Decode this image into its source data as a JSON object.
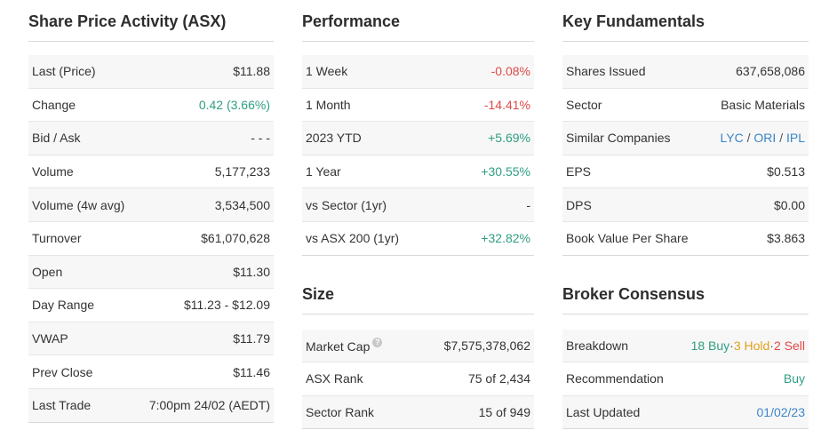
{
  "share_price": {
    "title": "Share Price Activity (ASX)",
    "rows": [
      {
        "label": "Last (Price)",
        "value": "$11.88"
      },
      {
        "label": "Change",
        "value": "0.42 (3.66%)"
      },
      {
        "label": "Bid / Ask",
        "value": "- - -"
      },
      {
        "label": "Volume",
        "value": "5,177,233"
      },
      {
        "label": "Volume (4w avg)",
        "value": "3,534,500"
      },
      {
        "label": "Turnover",
        "value": "$61,070,628"
      },
      {
        "label": "Open",
        "value": "$11.30"
      },
      {
        "label": "Day Range",
        "value": "$11.23 - $12.09"
      },
      {
        "label": "VWAP",
        "value": "$11.79"
      },
      {
        "label": "Prev Close",
        "value": "$11.46"
      },
      {
        "label": "Last Trade",
        "value": "7:00pm 24/02 (AEDT)"
      }
    ]
  },
  "performance": {
    "title": "Performance",
    "rows": [
      {
        "label": "1 Week",
        "value": "-0.08%"
      },
      {
        "label": "1 Month",
        "value": "-14.41%"
      },
      {
        "label": "2023 YTD",
        "value": "+5.69%"
      },
      {
        "label": "1 Year",
        "value": "+30.55%"
      },
      {
        "label": "vs Sector (1yr)",
        "value": "-"
      },
      {
        "label": "vs ASX 200 (1yr)",
        "value": "+32.82%"
      }
    ]
  },
  "size": {
    "title": "Size",
    "rows": [
      {
        "label": "Market Cap",
        "value": "$7,575,378,062"
      },
      {
        "label": "ASX Rank",
        "value": "75 of 2,434"
      },
      {
        "label": "Sector Rank",
        "value": "15 of 949"
      }
    ],
    "info_icon": "?"
  },
  "fundamentals": {
    "title": "Key Fundamentals",
    "rows": [
      {
        "label": "Shares Issued",
        "value": "637,658,086"
      },
      {
        "label": "Sector",
        "value": "Basic Materials"
      },
      {
        "label": "Similar Companies",
        "companies": [
          "LYC",
          "ORI",
          "IPL"
        ],
        "separator": "/"
      },
      {
        "label": "EPS",
        "value": "$0.513"
      },
      {
        "label": "DPS",
        "value": "$0.00"
      },
      {
        "label": "Book Value Per Share",
        "value": "$3.863"
      }
    ]
  },
  "broker": {
    "title": "Broker Consensus",
    "breakdown_label": "Breakdown",
    "buy": "18 Buy",
    "hold": "3 Hold",
    "sell": "2 Sell",
    "dot": "·",
    "recommendation_label": "Recommendation",
    "recommendation": "Buy",
    "last_updated_label": "Last Updated",
    "last_updated": "01/02/23"
  },
  "colors": {
    "positive": "#2f9e83",
    "negative": "#e04848",
    "hold": "#e0a11b",
    "link": "#3a86c8"
  }
}
